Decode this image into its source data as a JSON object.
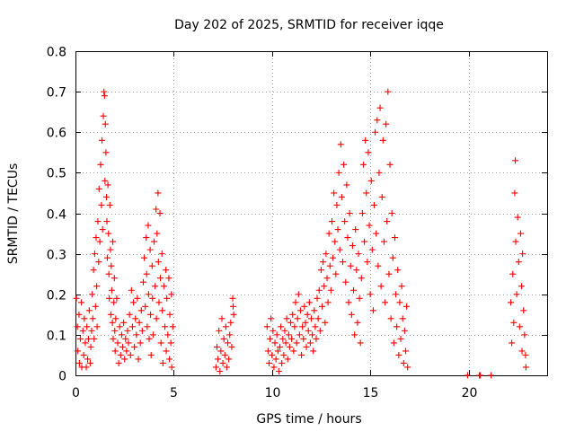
{
  "chart_data": {
    "type": "scatter",
    "title": "Day 202 of 2025, SRMTID for receiver iqqe",
    "xlabel": "GPS time / hours",
    "ylabel": "SRMTID / TECUs",
    "xlim": [
      0,
      24
    ],
    "ylim": [
      0,
      0.8
    ],
    "xticks": [
      "0",
      "5",
      "10",
      "15",
      "20"
    ],
    "yticks": [
      "0",
      "0.1",
      "0.2",
      "0.3",
      "0.4",
      "0.5",
      "0.6",
      "0.7",
      "0.8"
    ],
    "grid": true,
    "marker": "+",
    "color": "#ff0000",
    "series": [
      {
        "name": "SRMTID",
        "points": [
          [
            0.05,
            0.19
          ],
          [
            0.1,
            0.12
          ],
          [
            0.12,
            0.06
          ],
          [
            0.18,
            0.15
          ],
          [
            0.2,
            0.03
          ],
          [
            0.25,
            0.09
          ],
          [
            0.3,
            0.18
          ],
          [
            0.32,
            0.02
          ],
          [
            0.38,
            0.11
          ],
          [
            0.42,
            0.05
          ],
          [
            0.45,
            0.14
          ],
          [
            0.5,
            0.08
          ],
          [
            0.55,
            0.02
          ],
          [
            0.58,
            0.12
          ],
          [
            0.62,
            0.04
          ],
          [
            0.66,
            0.09
          ],
          [
            0.7,
            0.16
          ],
          [
            0.75,
            0.03
          ],
          [
            0.78,
            0.07
          ],
          [
            0.82,
            0.11
          ],
          [
            0.85,
            0.2
          ],
          [
            0.88,
            0.14
          ],
          [
            0.92,
            0.26
          ],
          [
            0.95,
            0.09
          ],
          [
            0.98,
            0.3
          ],
          [
            1.02,
            0.17
          ],
          [
            1.05,
            0.34
          ],
          [
            1.08,
            0.22
          ],
          [
            1.1,
            0.12
          ],
          [
            1.14,
            0.38
          ],
          [
            1.18,
            0.28
          ],
          [
            1.2,
            0.46
          ],
          [
            1.24,
            0.33
          ],
          [
            1.28,
            0.52
          ],
          [
            1.32,
            0.42
          ],
          [
            1.35,
            0.58
          ],
          [
            1.38,
            0.36
          ],
          [
            1.42,
            0.64
          ],
          [
            1.45,
            0.7
          ],
          [
            1.48,
            0.69
          ],
          [
            1.5,
            0.48
          ],
          [
            1.52,
            0.62
          ],
          [
            1.55,
            0.55
          ],
          [
            1.58,
            0.44
          ],
          [
            1.6,
            0.38
          ],
          [
            1.62,
            0.29
          ],
          [
            1.65,
            0.47
          ],
          [
            1.68,
            0.35
          ],
          [
            1.7,
            0.25
          ],
          [
            1.72,
            0.19
          ],
          [
            1.75,
            0.42
          ],
          [
            1.78,
            0.31
          ],
          [
            1.8,
            0.15
          ],
          [
            1.82,
            0.27
          ],
          [
            1.85,
            0.21
          ],
          [
            1.88,
            0.13
          ],
          [
            1.9,
            0.33
          ],
          [
            1.92,
            0.09
          ],
          [
            1.95,
            0.18
          ],
          [
            1.98,
            0.24
          ],
          [
            2.0,
            0.11
          ],
          [
            2.02,
            0.06
          ],
          [
            2.05,
            0.14
          ],
          [
            2.1,
            0.19
          ],
          [
            2.15,
            0.08
          ],
          [
            2.2,
            0.03
          ],
          [
            2.25,
            0.12
          ],
          [
            2.3,
            0.05
          ],
          [
            2.35,
            0.1
          ],
          [
            2.4,
            0.07
          ],
          [
            2.45,
            0.13
          ],
          [
            2.5,
            0.04
          ],
          [
            2.55,
            0.09
          ],
          [
            2.6,
            0.06
          ],
          [
            2.65,
            0.11
          ],
          [
            2.7,
            0.08
          ],
          [
            2.75,
            0.15
          ],
          [
            2.8,
            0.05
          ],
          [
            2.85,
            0.21
          ],
          [
            2.9,
            0.12
          ],
          [
            2.95,
            0.18
          ],
          [
            3.0,
            0.07
          ],
          [
            3.05,
            0.14
          ],
          [
            3.1,
            0.1
          ],
          [
            3.15,
            0.19
          ],
          [
            3.2,
            0.04
          ],
          [
            3.25,
            0.13
          ],
          [
            3.3,
            0.08
          ],
          [
            3.35,
            0.16
          ],
          [
            3.4,
            0.11
          ],
          [
            3.45,
            0.23
          ],
          [
            3.5,
            0.29
          ],
          [
            3.55,
            0.17
          ],
          [
            3.6,
            0.34
          ],
          [
            3.62,
            0.25
          ],
          [
            3.65,
            0.12
          ],
          [
            3.7,
            0.37
          ],
          [
            3.72,
            0.2
          ],
          [
            3.75,
            0.09
          ],
          [
            3.8,
            0.31
          ],
          [
            3.82,
            0.15
          ],
          [
            3.85,
            0.05
          ],
          [
            3.9,
            0.27
          ],
          [
            3.92,
            0.19
          ],
          [
            3.95,
            0.1
          ],
          [
            4.0,
            0.33
          ],
          [
            4.05,
            0.22
          ],
          [
            4.1,
            0.41
          ],
          [
            4.12,
            0.14
          ],
          [
            4.15,
            0.35
          ],
          [
            4.2,
            0.45
          ],
          [
            4.22,
            0.28
          ],
          [
            4.25,
            0.18
          ],
          [
            4.3,
            0.4
          ],
          [
            4.32,
            0.24
          ],
          [
            4.35,
            0.08
          ],
          [
            4.4,
            0.3
          ],
          [
            4.42,
            0.16
          ],
          [
            4.45,
            0.03
          ],
          [
            4.5,
            0.22
          ],
          [
            4.55,
            0.12
          ],
          [
            4.6,
            0.26
          ],
          [
            4.62,
            0.06
          ],
          [
            4.65,
            0.19
          ],
          [
            4.7,
            0.1
          ],
          [
            4.75,
            0.24
          ],
          [
            4.78,
            0.04
          ],
          [
            4.8,
            0.15
          ],
          [
            4.85,
            0.08
          ],
          [
            4.88,
            0.2
          ],
          [
            4.9,
            0.02
          ],
          [
            4.95,
            0.12
          ],
          [
            7.15,
            0.02
          ],
          [
            7.2,
            0.07
          ],
          [
            7.25,
            0.04
          ],
          [
            7.3,
            0.11
          ],
          [
            7.35,
            0.01
          ],
          [
            7.4,
            0.06
          ],
          [
            7.45,
            0.14
          ],
          [
            7.5,
            0.03
          ],
          [
            7.55,
            0.09
          ],
          [
            7.6,
            0.05
          ],
          [
            7.65,
            0.12
          ],
          [
            7.7,
            0.02
          ],
          [
            7.75,
            0.08
          ],
          [
            7.8,
            0.04
          ],
          [
            7.85,
            0.1
          ],
          [
            7.9,
            0.13
          ],
          [
            7.95,
            0.07
          ],
          [
            8.0,
            0.19
          ],
          [
            8.02,
            0.17
          ],
          [
            8.05,
            0.15
          ],
          [
            9.75,
            0.12
          ],
          [
            9.8,
            0.06
          ],
          [
            9.85,
            0.03
          ],
          [
            9.9,
            0.09
          ],
          [
            9.95,
            0.14
          ],
          [
            10.0,
            0.05
          ],
          [
            10.05,
            0.11
          ],
          [
            10.1,
            0.02
          ],
          [
            10.15,
            0.08
          ],
          [
            10.2,
            0.04
          ],
          [
            10.25,
            0.1
          ],
          [
            10.3,
            0.06
          ],
          [
            10.35,
            0.01
          ],
          [
            10.4,
            0.07
          ],
          [
            10.45,
            0.12
          ],
          [
            10.5,
            0.03
          ],
          [
            10.55,
            0.09
          ],
          [
            10.6,
            0.05
          ],
          [
            10.65,
            0.11
          ],
          [
            10.7,
            0.08
          ],
          [
            10.75,
            0.14
          ],
          [
            10.8,
            0.04
          ],
          [
            10.85,
            0.1
          ],
          [
            10.9,
            0.07
          ],
          [
            10.95,
            0.13
          ],
          [
            11.0,
            0.09
          ],
          [
            11.05,
            0.15
          ],
          [
            11.1,
            0.06
          ],
          [
            11.15,
            0.12
          ],
          [
            11.2,
            0.18
          ],
          [
            11.25,
            0.08
          ],
          [
            11.3,
            0.14
          ],
          [
            11.35,
            0.2
          ],
          [
            11.4,
            0.1
          ],
          [
            11.45,
            0.16
          ],
          [
            11.5,
            0.05
          ],
          [
            11.55,
            0.12
          ],
          [
            11.6,
            0.09
          ],
          [
            11.65,
            0.17
          ],
          [
            11.7,
            0.13
          ],
          [
            11.75,
            0.07
          ],
          [
            11.8,
            0.15
          ],
          [
            11.85,
            0.11
          ],
          [
            11.9,
            0.18
          ],
          [
            11.95,
            0.08
          ],
          [
            12.0,
            0.14
          ],
          [
            12.05,
            0.1
          ],
          [
            12.1,
            0.06
          ],
          [
            12.15,
            0.16
          ],
          [
            12.2,
            0.12
          ],
          [
            12.25,
            0.09
          ],
          [
            12.3,
            0.19
          ],
          [
            12.35,
            0.14
          ],
          [
            12.4,
            0.21
          ],
          [
            12.45,
            0.11
          ],
          [
            12.5,
            0.26
          ],
          [
            12.55,
            0.17
          ],
          [
            12.6,
            0.28
          ],
          [
            12.65,
            0.22
          ],
          [
            12.7,
            0.13
          ],
          [
            12.75,
            0.3
          ],
          [
            12.8,
            0.24
          ],
          [
            12.85,
            0.18
          ],
          [
            12.9,
            0.35
          ],
          [
            12.95,
            0.27
          ],
          [
            13.0,
            0.21
          ],
          [
            13.05,
            0.38
          ],
          [
            13.1,
            0.29
          ],
          [
            13.15,
            0.45
          ],
          [
            13.2,
            0.33
          ],
          [
            13.25,
            0.25
          ],
          [
            13.3,
            0.42
          ],
          [
            13.35,
            0.36
          ],
          [
            13.4,
            0.5
          ],
          [
            13.45,
            0.31
          ],
          [
            13.5,
            0.57
          ],
          [
            13.55,
            0.44
          ],
          [
            13.6,
            0.28
          ],
          [
            13.65,
            0.52
          ],
          [
            13.7,
            0.38
          ],
          [
            13.75,
            0.23
          ],
          [
            13.8,
            0.47
          ],
          [
            13.85,
            0.34
          ],
          [
            13.9,
            0.18
          ],
          [
            13.95,
            0.4
          ],
          [
            14.0,
            0.27
          ],
          [
            14.05,
            0.15
          ],
          [
            14.1,
            0.32
          ],
          [
            14.15,
            0.21
          ],
          [
            14.2,
            0.1
          ],
          [
            14.25,
            0.36
          ],
          [
            14.3,
            0.26
          ],
          [
            14.35,
            0.13
          ],
          [
            14.4,
            0.3
          ],
          [
            14.45,
            0.19
          ],
          [
            14.5,
            0.08
          ],
          [
            14.55,
            0.24
          ],
          [
            14.6,
            0.4
          ],
          [
            14.65,
            0.52
          ],
          [
            14.7,
            0.33
          ],
          [
            14.75,
            0.58
          ],
          [
            14.8,
            0.45
          ],
          [
            14.85,
            0.28
          ],
          [
            14.9,
            0.55
          ],
          [
            14.95,
            0.37
          ],
          [
            15.0,
            0.2
          ],
          [
            15.05,
            0.48
          ],
          [
            15.1,
            0.31
          ],
          [
            15.15,
            0.16
          ],
          [
            15.2,
            0.42
          ],
          [
            15.25,
            0.6
          ],
          [
            15.3,
            0.35
          ],
          [
            15.35,
            0.63
          ],
          [
            15.4,
            0.27
          ],
          [
            15.45,
            0.5
          ],
          [
            15.5,
            0.66
          ],
          [
            15.55,
            0.22
          ],
          [
            15.6,
            0.44
          ],
          [
            15.65,
            0.58
          ],
          [
            15.7,
            0.33
          ],
          [
            15.75,
            0.18
          ],
          [
            15.8,
            0.62
          ],
          [
            15.85,
            0.38
          ],
          [
            15.9,
            0.7
          ],
          [
            15.95,
            0.25
          ],
          [
            16.0,
            0.52
          ],
          [
            16.05,
            0.14
          ],
          [
            16.1,
            0.4
          ],
          [
            16.15,
            0.29
          ],
          [
            16.2,
            0.08
          ],
          [
            16.25,
            0.34
          ],
          [
            16.3,
            0.2
          ],
          [
            16.35,
            0.12
          ],
          [
            16.4,
            0.26
          ],
          [
            16.45,
            0.05
          ],
          [
            16.5,
            0.18
          ],
          [
            16.55,
            0.09
          ],
          [
            16.6,
            0.22
          ],
          [
            16.65,
            0.14
          ],
          [
            16.7,
            0.03
          ],
          [
            16.75,
            0.11
          ],
          [
            16.8,
            0.06
          ],
          [
            16.85,
            0.17
          ],
          [
            16.9,
            0.02
          ],
          [
            19.95,
            0.0
          ],
          [
            20.55,
            0.0
          ],
          [
            20.6,
            0.0
          ],
          [
            21.15,
            0.0
          ],
          [
            22.15,
            0.18
          ],
          [
            22.2,
            0.08
          ],
          [
            22.25,
            0.25
          ],
          [
            22.3,
            0.13
          ],
          [
            22.35,
            0.45
          ],
          [
            22.38,
            0.53
          ],
          [
            22.4,
            0.33
          ],
          [
            22.45,
            0.2
          ],
          [
            22.5,
            0.39
          ],
          [
            22.55,
            0.28
          ],
          [
            22.6,
            0.12
          ],
          [
            22.65,
            0.35
          ],
          [
            22.7,
            0.22
          ],
          [
            22.72,
            0.06
          ],
          [
            22.75,
            0.3
          ],
          [
            22.8,
            0.16
          ],
          [
            22.85,
            0.1
          ],
          [
            22.9,
            0.05
          ],
          [
            22.92,
            0.02
          ]
        ]
      }
    ]
  }
}
